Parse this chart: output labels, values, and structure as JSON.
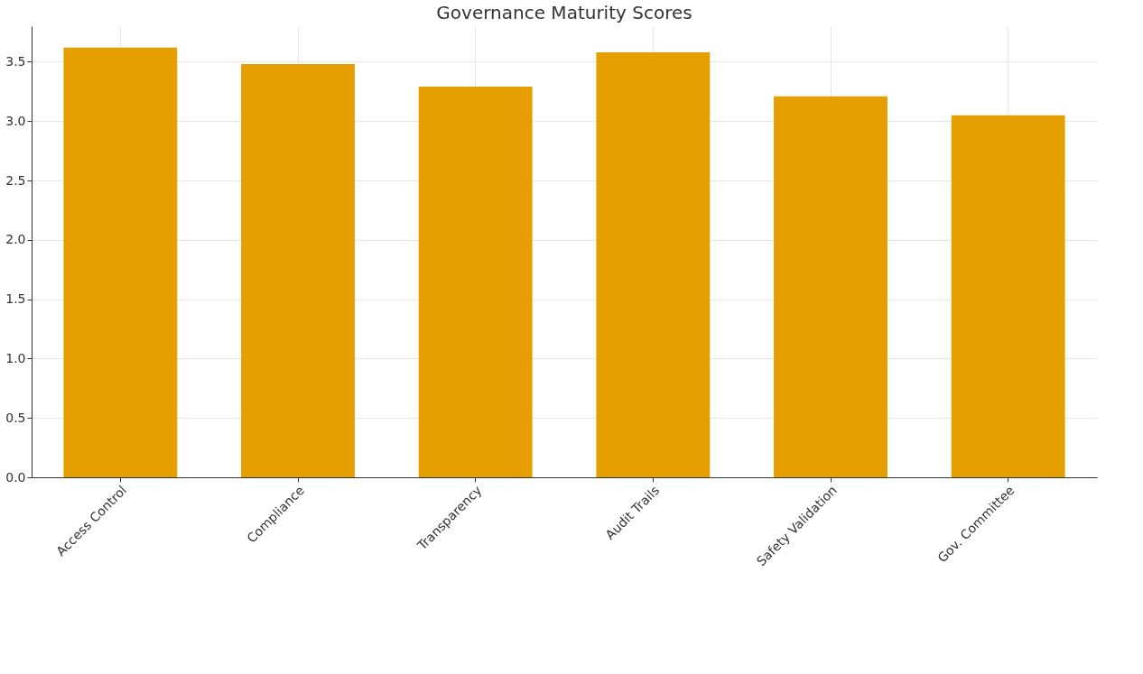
{
  "chart_data": {
    "type": "bar",
    "title": "Governance Maturity Scores",
    "categories": [
      "Access Control",
      "Compliance",
      "Transparency",
      "Audit Trails",
      "Safety Validation",
      "Gov. Committee"
    ],
    "values": [
      3.62,
      3.48,
      3.29,
      3.58,
      3.21,
      3.05
    ],
    "color": "#e69f00",
    "ylim": [
      0,
      3.8
    ],
    "yticks": [
      {
        "value": 0,
        "label": "0.0"
      },
      {
        "value": 0.5,
        "label": "0.5"
      },
      {
        "value": 1,
        "label": "1.0"
      },
      {
        "value": 1.5,
        "label": "1.5"
      },
      {
        "value": 2,
        "label": "2.0"
      },
      {
        "value": 2.5,
        "label": "2.5"
      },
      {
        "value": 3,
        "label": "3.0"
      },
      {
        "value": 3.5,
        "label": "3.5"
      }
    ],
    "grid": true
  }
}
